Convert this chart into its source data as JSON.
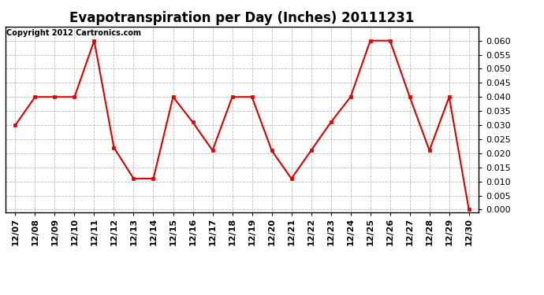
{
  "title": "Evapotranspiration per Day (Inches) 20111231",
  "copyright": "Copyright 2012 Cartronics.com",
  "dates": [
    "12/07",
    "12/08",
    "12/09",
    "12/10",
    "12/11",
    "12/12",
    "12/13",
    "12/14",
    "12/15",
    "12/16",
    "12/17",
    "12/18",
    "12/19",
    "12/20",
    "12/21",
    "12/22",
    "12/23",
    "12/24",
    "12/25",
    "12/26",
    "12/27",
    "12/28",
    "12/29",
    "12/30"
  ],
  "values": [
    0.03,
    0.04,
    0.04,
    0.04,
    0.06,
    0.022,
    0.011,
    0.011,
    0.04,
    0.031,
    0.021,
    0.04,
    0.04,
    0.021,
    0.011,
    0.021,
    0.031,
    0.04,
    0.06,
    0.06,
    0.04,
    0.021,
    0.04,
    0.0
  ],
  "line_color": "#dd0000",
  "marker": "s",
  "marker_size": 3,
  "bg_color": "#ffffff",
  "plot_bg_color": "#ffffff",
  "grid_color": "#bbbbbb",
  "ylim": [
    -0.001,
    0.065
  ],
  "yticks": [
    0.0,
    0.005,
    0.01,
    0.015,
    0.02,
    0.025,
    0.03,
    0.035,
    0.04,
    0.045,
    0.05,
    0.055,
    0.06
  ],
  "title_fontsize": 12,
  "copyright_fontsize": 7,
  "tick_fontsize": 8,
  "linewidth": 1.5
}
